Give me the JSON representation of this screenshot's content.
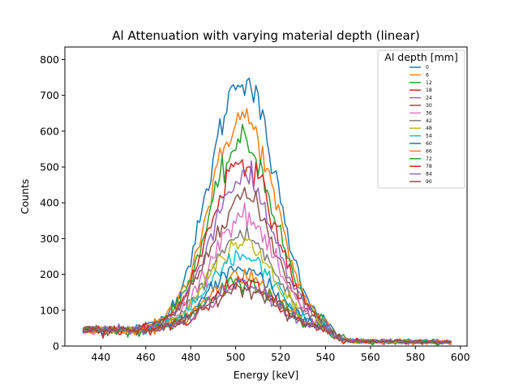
{
  "chart_data": {
    "type": "line",
    "title": "Al Attenuation with varying material depth (linear)",
    "xlabel": "Energy [keV]",
    "ylabel": "Counts",
    "xlim": [
      424,
      603
    ],
    "ylim": [
      0,
      835
    ],
    "xticks": [
      440,
      460,
      480,
      500,
      520,
      540,
      560,
      580,
      600
    ],
    "yticks": [
      0,
      100,
      200,
      300,
      400,
      500,
      600,
      700,
      800
    ],
    "x_range": [
      432,
      596
    ],
    "grid": false,
    "legend": {
      "title": "Al depth [mm]",
      "placement": "top-right"
    },
    "series": [
      {
        "name": "0",
        "color": "#1f77b4",
        "baseline": 45,
        "peak": 750,
        "center": 503,
        "sigma": 14.5,
        "tail": 12
      },
      {
        "name": "6",
        "color": "#ff7f0e",
        "baseline": 45,
        "peak": 640,
        "center": 503,
        "sigma": 14.5,
        "tail": 12
      },
      {
        "name": "12",
        "color": "#2ca02c",
        "baseline": 45,
        "peak": 570,
        "center": 503,
        "sigma": 14.5,
        "tail": 12
      },
      {
        "name": "18",
        "color": "#d62728",
        "baseline": 45,
        "peak": 520,
        "center": 503,
        "sigma": 14.5,
        "tail": 12
      },
      {
        "name": "24",
        "color": "#9467bd",
        "baseline": 45,
        "peak": 470,
        "center": 503,
        "sigma": 14.5,
        "tail": 12
      },
      {
        "name": "30",
        "color": "#8c564b",
        "baseline": 45,
        "peak": 420,
        "center": 503,
        "sigma": 14.5,
        "tail": 12
      },
      {
        "name": "36",
        "color": "#e377c2",
        "baseline": 45,
        "peak": 360,
        "center": 503,
        "sigma": 14.5,
        "tail": 12
      },
      {
        "name": "42",
        "color": "#7f7f7f",
        "baseline": 45,
        "peak": 310,
        "center": 503,
        "sigma": 14.5,
        "tail": 12
      },
      {
        "name": "48",
        "color": "#bcbd22",
        "baseline": 45,
        "peak": 290,
        "center": 503,
        "sigma": 14.5,
        "tail": 12
      },
      {
        "name": "54",
        "color": "#17becf",
        "baseline": 45,
        "peak": 250,
        "center": 503,
        "sigma": 14.5,
        "tail": 12
      },
      {
        "name": "60",
        "color": "#1f77b4",
        "baseline": 45,
        "peak": 220,
        "center": 503,
        "sigma": 14.5,
        "tail": 12
      },
      {
        "name": "66",
        "color": "#ff7f0e",
        "baseline": 45,
        "peak": 200,
        "center": 503,
        "sigma": 14.5,
        "tail": 12
      },
      {
        "name": "72",
        "color": "#2ca02c",
        "baseline": 45,
        "peak": 180,
        "center": 503,
        "sigma": 14.5,
        "tail": 12
      },
      {
        "name": "78",
        "color": "#d62728",
        "baseline": 45,
        "peak": 175,
        "center": 503,
        "sigma": 14.5,
        "tail": 12
      },
      {
        "name": "84",
        "color": "#9467bd",
        "baseline": 45,
        "peak": 170,
        "center": 503,
        "sigma": 14.5,
        "tail": 12
      },
      {
        "name": "90",
        "color": "#8c564b",
        "baseline": 45,
        "peak": 165,
        "center": 503,
        "sigma": 14.5,
        "tail": 12
      }
    ]
  }
}
